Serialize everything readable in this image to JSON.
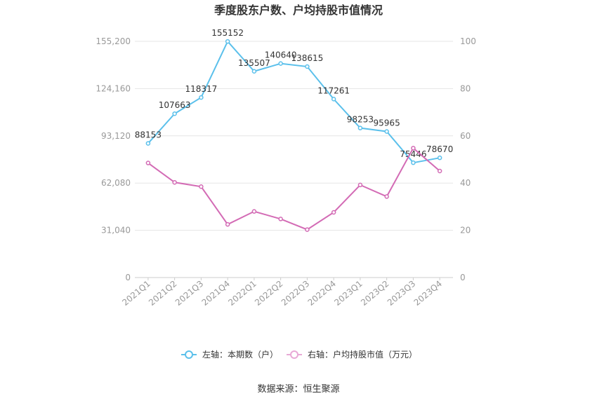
{
  "title": "季度股东户数、户均持股市值情况",
  "source": "数据来源：恒生聚源",
  "colors": {
    "left_series": "#5bc0eb",
    "right_series": "#d36bb5",
    "grid": "#e6e6e6",
    "axis_text": "#999999"
  },
  "chart_data": {
    "type": "line",
    "categories": [
      "2021Q1",
      "2021Q2",
      "2021Q3",
      "2021Q4",
      "2022Q1",
      "2022Q2",
      "2022Q3",
      "2022Q4",
      "2023Q1",
      "2023Q2",
      "2023Q3",
      "2023Q4"
    ],
    "y_left": {
      "ticks": [
        "0",
        "31,040",
        "62,080",
        "93,120",
        "124,160",
        "155,200"
      ],
      "ylim": [
        0,
        155200
      ]
    },
    "y_right": {
      "ticks": [
        "0",
        "20",
        "40",
        "60",
        "80",
        "100"
      ],
      "ylim": [
        0,
        100
      ]
    },
    "series": [
      {
        "name": "左轴：本期数（户）",
        "axis": "left",
        "values": [
          88153,
          107663,
          118317,
          155152,
          135507,
          140640,
          138615,
          117261,
          98253,
          95965,
          75446,
          78670
        ],
        "labels": [
          "88153",
          "107663",
          "118317",
          "155152",
          "135507",
          "140640",
          "138615",
          "117261",
          "98253",
          "95965",
          "75446",
          "78670"
        ]
      },
      {
        "name": "右轴：户均持股市值（万元）",
        "axis": "right",
        "values": [
          48.5,
          40.3,
          38.5,
          22.5,
          28,
          24.8,
          20.3,
          27.6,
          39.2,
          34.3,
          54.8,
          45.1
        ]
      }
    ],
    "legend_position": "bottom",
    "grid": true
  }
}
